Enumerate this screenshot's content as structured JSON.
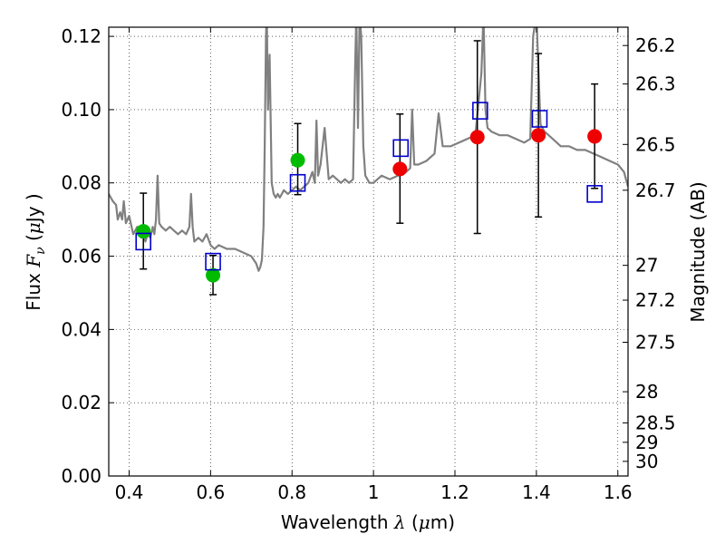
{
  "chart_data": {
    "type": "scatter",
    "xlabel_prefix": "Wavelength",
    "xlabel_symbol": "λ",
    "xlabel_unit_open": "(",
    "xlabel_unit_mu": "μ",
    "xlabel_unit_rest": "m)",
    "ylabel_prefix": "Flux",
    "ylabel_symbol": "F",
    "ylabel_sub": "ν",
    "ylabel_unit_open": "(",
    "ylabel_unit_mu": "μ",
    "ylabel_unit_rest": "Jy )",
    "y2label": "Magnitude (AB)",
    "xlim": [
      0.35,
      1.625
    ],
    "ylim": [
      0.0,
      0.1225
    ],
    "grid": true,
    "x_ticks": [
      {
        "value": 0.4,
        "label": "0.4"
      },
      {
        "value": 0.6,
        "label": "0.6"
      },
      {
        "value": 0.8,
        "label": "0.8"
      },
      {
        "value": 1.0,
        "label": "1"
      },
      {
        "value": 1.2,
        "label": "1.2"
      },
      {
        "value": 1.4,
        "label": "1.4"
      },
      {
        "value": 1.6,
        "label": "1.6"
      }
    ],
    "y_ticks": [
      {
        "value": 0.0,
        "label": "0.00"
      },
      {
        "value": 0.02,
        "label": "0.02"
      },
      {
        "value": 0.04,
        "label": "0.04"
      },
      {
        "value": 0.06,
        "label": "0.06"
      },
      {
        "value": 0.08,
        "label": "0.08"
      },
      {
        "value": 0.1,
        "label": "0.10"
      },
      {
        "value": 0.12,
        "label": "0.12"
      }
    ],
    "y2_ticks": [
      {
        "flux": 0.1175,
        "label": "26.2"
      },
      {
        "flux": 0.107,
        "label": "26.3"
      },
      {
        "flux": 0.0905,
        "label": "26.5"
      },
      {
        "flux": 0.078,
        "label": "26.7"
      },
      {
        "flux": 0.0575,
        "label": "27"
      },
      {
        "flux": 0.048,
        "label": "27.2"
      },
      {
        "flux": 0.0365,
        "label": "27.5"
      },
      {
        "flux": 0.023,
        "label": "28"
      },
      {
        "flux": 0.0145,
        "label": "28.5"
      },
      {
        "flux": 0.0092,
        "label": "29"
      },
      {
        "flux": 0.004,
        "label": "30"
      }
    ],
    "series": [
      {
        "name": "observed-green",
        "color": "#00bb00",
        "marker": "circle",
        "points": [
          {
            "x": 0.435,
            "y": 0.0668,
            "err_low": 0.0565,
            "err_high": 0.0772
          },
          {
            "x": 0.606,
            "y": 0.0548,
            "err_low": 0.0495,
            "err_high": 0.0602
          },
          {
            "x": 0.814,
            "y": 0.0862,
            "err_low": 0.0768,
            "err_high": 0.0962
          }
        ]
      },
      {
        "name": "observed-red",
        "color": "#ee0000",
        "marker": "circle",
        "points": [
          {
            "x": 1.065,
            "y": 0.0838,
            "err_low": 0.069,
            "err_high": 0.0988
          },
          {
            "x": 1.255,
            "y": 0.0925,
            "err_low": 0.0662,
            "err_high": 0.1188
          },
          {
            "x": 1.405,
            "y": 0.093,
            "err_low": 0.0707,
            "err_high": 0.1153
          },
          {
            "x": 1.543,
            "y": 0.0927,
            "err_low": 0.0785,
            "err_high": 0.107
          }
        ]
      },
      {
        "name": "model-photometry",
        "color": "#0000cc",
        "marker": "square-open",
        "points": [
          {
            "x": 0.435,
            "y": 0.064
          },
          {
            "x": 0.606,
            "y": 0.0585
          },
          {
            "x": 0.814,
            "y": 0.08
          },
          {
            "x": 1.067,
            "y": 0.0895
          },
          {
            "x": 1.262,
            "y": 0.0997
          },
          {
            "x": 1.408,
            "y": 0.0975
          },
          {
            "x": 1.543,
            "y": 0.077
          }
        ]
      }
    ],
    "model_spectrum": {
      "name": "model-spectrum",
      "color": "#808080",
      "x": [
        0.35,
        0.36,
        0.368,
        0.372,
        0.378,
        0.383,
        0.387,
        0.392,
        0.396,
        0.4,
        0.41,
        0.42,
        0.425,
        0.43,
        0.436,
        0.44,
        0.446,
        0.452,
        0.458,
        0.462,
        0.466,
        0.47,
        0.474,
        0.48,
        0.49,
        0.5,
        0.51,
        0.52,
        0.53,
        0.54,
        0.548,
        0.552,
        0.556,
        0.56,
        0.57,
        0.58,
        0.59,
        0.6,
        0.61,
        0.62,
        0.64,
        0.66,
        0.68,
        0.7,
        0.712,
        0.718,
        0.722,
        0.726,
        0.73,
        0.733,
        0.736,
        0.738,
        0.741,
        0.745,
        0.75,
        0.755,
        0.76,
        0.765,
        0.77,
        0.775,
        0.78,
        0.79,
        0.8,
        0.81,
        0.82,
        0.83,
        0.84,
        0.85,
        0.856,
        0.86,
        0.864,
        0.87,
        0.88,
        0.89,
        0.9,
        0.91,
        0.92,
        0.93,
        0.94,
        0.95,
        0.955,
        0.958,
        0.962,
        0.966,
        0.97,
        0.975,
        0.98,
        0.985,
        0.99,
        1.0,
        1.02,
        1.04,
        1.06,
        1.08,
        1.09,
        1.095,
        1.1,
        1.11,
        1.13,
        1.15,
        1.16,
        1.17,
        1.19,
        1.21,
        1.23,
        1.25,
        1.265,
        1.27,
        1.275,
        1.28,
        1.29,
        1.31,
        1.33,
        1.35,
        1.37,
        1.385,
        1.392,
        1.4,
        1.41,
        1.42,
        1.44,
        1.46,
        1.48,
        1.5,
        1.52,
        1.54,
        1.56,
        1.58,
        1.6,
        1.615,
        1.625
      ],
      "y": [
        0.077,
        0.075,
        0.074,
        0.07,
        0.072,
        0.07,
        0.075,
        0.069,
        0.07,
        0.071,
        0.066,
        0.068,
        0.067,
        0.065,
        0.066,
        0.064,
        0.066,
        0.065,
        0.068,
        0.066,
        0.07,
        0.082,
        0.069,
        0.068,
        0.067,
        0.068,
        0.067,
        0.066,
        0.067,
        0.066,
        0.068,
        0.077,
        0.068,
        0.064,
        0.065,
        0.064,
        0.066,
        0.063,
        0.062,
        0.063,
        0.062,
        0.062,
        0.061,
        0.06,
        0.058,
        0.056,
        0.057,
        0.059,
        0.068,
        0.09,
        0.12,
        0.126,
        0.1,
        0.115,
        0.08,
        0.077,
        0.076,
        0.077,
        0.076,
        0.077,
        0.078,
        0.077,
        0.078,
        0.079,
        0.078,
        0.079,
        0.08,
        0.083,
        0.08,
        0.097,
        0.082,
        0.085,
        0.095,
        0.081,
        0.082,
        0.081,
        0.08,
        0.081,
        0.08,
        0.081,
        0.112,
        0.126,
        0.095,
        0.126,
        0.12,
        0.09,
        0.082,
        0.081,
        0.08,
        0.08,
        0.082,
        0.081,
        0.082,
        0.083,
        0.084,
        0.1,
        0.085,
        0.085,
        0.086,
        0.088,
        0.099,
        0.09,
        0.09,
        0.091,
        0.092,
        0.093,
        0.11,
        0.126,
        0.1,
        0.095,
        0.094,
        0.093,
        0.093,
        0.092,
        0.091,
        0.092,
        0.12,
        0.126,
        0.096,
        0.094,
        0.092,
        0.09,
        0.09,
        0.089,
        0.089,
        0.088,
        0.087,
        0.086,
        0.085,
        0.083,
        0.079
      ]
    }
  }
}
